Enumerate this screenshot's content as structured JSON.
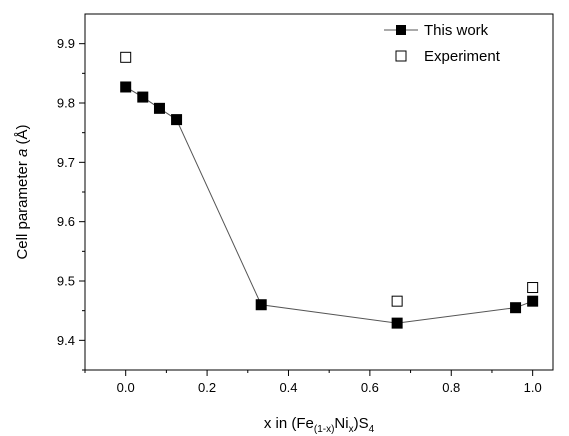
{
  "chart_data": {
    "type": "scatter",
    "xlabel": {
      "main": "x in (Fe",
      "sub1": "(1-x)",
      "mid": "Ni",
      "sub2": "x",
      "end": ")S",
      "sub3": "4"
    },
    "ylabel": {
      "main": "Cell parameter ",
      "italic": "a",
      "unit": " (Å)"
    },
    "xlim": [
      -0.1,
      1.05
    ],
    "ylim": [
      9.35,
      9.95
    ],
    "xticks": [
      "0.0",
      "0.2",
      "0.4",
      "0.6",
      "0.8",
      "1.0"
    ],
    "yticks": [
      "9.4",
      "9.5",
      "9.6",
      "9.7",
      "9.8",
      "9.9"
    ],
    "xtick_values": [
      0.0,
      0.2,
      0.4,
      0.6,
      0.8,
      1.0
    ],
    "ytick_values": [
      9.4,
      9.5,
      9.6,
      9.7,
      9.8,
      9.9
    ],
    "legend_position": "top-right",
    "series": [
      {
        "name": "This work",
        "marker": "filled-square",
        "line": true,
        "color": "#000000",
        "x": [
          0.0,
          0.042,
          0.083,
          0.125,
          0.333,
          0.667,
          0.958,
          1.0
        ],
        "y": [
          9.827,
          9.81,
          9.791,
          9.772,
          9.46,
          9.429,
          9.455,
          9.466
        ]
      },
      {
        "name": "Experiment",
        "marker": "open-square",
        "line": false,
        "color": "#000000",
        "x": [
          0.0,
          0.667,
          1.0
        ],
        "y": [
          9.877,
          9.466,
          9.489
        ]
      }
    ]
  }
}
